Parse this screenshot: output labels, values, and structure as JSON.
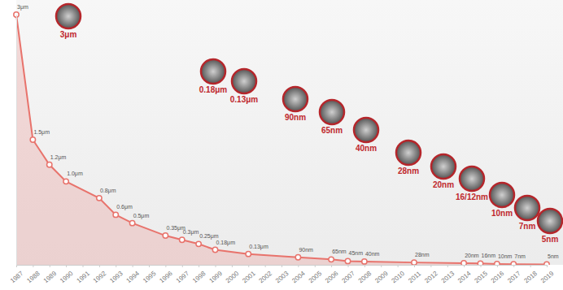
{
  "chart_data": {
    "type": "line",
    "x": [
      1987,
      1988,
      1989,
      1990,
      1992,
      1993,
      1994,
      1996,
      1997,
      1998,
      1999,
      2001,
      2004,
      2006,
      2007,
      2008,
      2011,
      2014,
      2015,
      2016,
      2017,
      2019
    ],
    "values": [
      3000,
      1500,
      1200,
      1000,
      800,
      600,
      500,
      350,
      300,
      250,
      180,
      130,
      90,
      65,
      45,
      40,
      28,
      20,
      16,
      10,
      7,
      5
    ],
    "value_labels": [
      "3μm",
      "1.5μm",
      "1.2μm",
      "1.0μm",
      "0.8μm",
      "0.6μm",
      "0.5μm",
      "0.35μm",
      "0.3μm",
      "0.25μm",
      "0.18μm",
      "0.13μm",
      "90nm",
      "65nm",
      "45nm",
      "40nm",
      "28nm",
      "20nm",
      "16nm",
      "10nm",
      "7nm",
      "5nm"
    ],
    "data_labels": true,
    "color": "#e8736c",
    "marker": "circle",
    "xlim": [
      1987,
      2019
    ],
    "xticks": [
      1987,
      1988,
      1989,
      1990,
      1991,
      1992,
      1993,
      1994,
      1995,
      1996,
      1997,
      1998,
      1999,
      2000,
      2001,
      2002,
      2003,
      2004,
      2005,
      2006,
      2007,
      2008,
      2009,
      2010,
      2011,
      2012,
      2013,
      2014,
      2015,
      2016,
      2017,
      2018,
      2019
    ],
    "ylim": [
      0,
      3000
    ],
    "tick_labels": "x",
    "annotations": [
      "3μm",
      "0.18μm",
      "0.13μm",
      "90nm",
      "65nm",
      "40nm",
      "28nm",
      "20nm",
      "16/12nm",
      "10nm",
      "7nm",
      "5nm"
    ]
  }
}
